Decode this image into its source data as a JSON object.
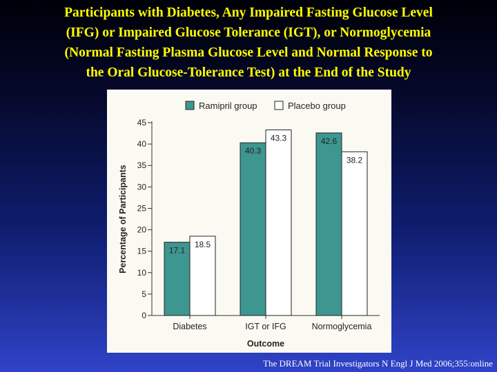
{
  "slide": {
    "title_lines": [
      "Participants with Diabetes, Any Impaired Fasting Glucose Level",
      "(IFG) or Impaired Glucose Tolerance (IGT), or Normoglycemia",
      "(Normal Fasting Plasma Glucose Level and Normal Response to",
      "the Oral Glucose-Tolerance Test) at the End of the Study"
    ],
    "citation": "The DREAM Trial Investigators  N Engl J Med 2006;355:online"
  },
  "chart_data": {
    "type": "bar",
    "categories": [
      "Diabetes",
      "IGT or IFG",
      "Normoglycemia"
    ],
    "series": [
      {
        "name": "Ramipril group",
        "values": [
          17.1,
          40.3,
          42.6
        ],
        "color": "#3d9690"
      },
      {
        "name": "Placebo group",
        "values": [
          18.5,
          43.3,
          38.2
        ],
        "color": "#ffffff"
      }
    ],
    "data_labels": [
      [
        "17.1",
        "40.3",
        "42.6"
      ],
      [
        "18.5",
        "43.3",
        "38.2"
      ]
    ],
    "xlabel": "Outcome",
    "ylabel": "Percentage of Participants",
    "ylim": [
      0,
      45
    ],
    "yticks": [
      "0",
      "5",
      "10",
      "15",
      "20",
      "25",
      "30",
      "35",
      "40",
      "45"
    ],
    "legend_position": "top-left",
    "grid": false
  }
}
